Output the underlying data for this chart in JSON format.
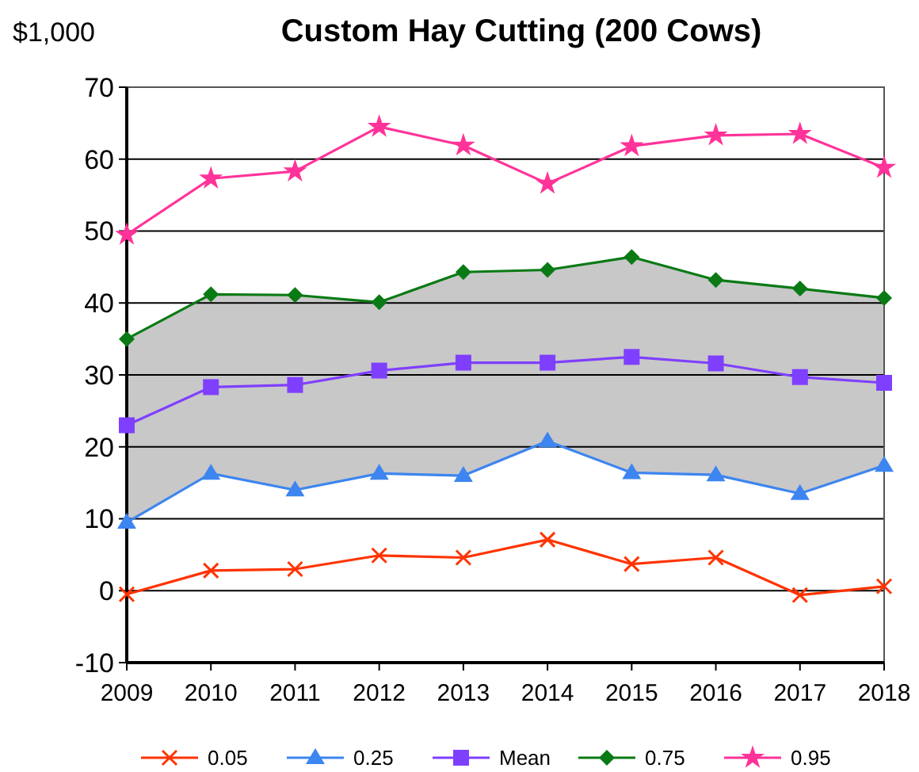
{
  "chart_data": {
    "type": "line",
    "title": "Custom Hay Cutting (200 Cows)",
    "ylabel": "$1,000",
    "x": [
      2009,
      2010,
      2011,
      2012,
      2013,
      2014,
      2015,
      2016,
      2017,
      2018
    ],
    "xlim": [
      2009,
      2018
    ],
    "xticks": [
      2009,
      2010,
      2011,
      2012,
      2013,
      2014,
      2015,
      2016,
      2017,
      2018
    ],
    "ylim": [
      -10,
      70
    ],
    "yticks": [
      -10,
      0,
      10,
      20,
      30,
      40,
      50,
      60,
      70
    ],
    "grid": "y",
    "legend": "bottom",
    "series": [
      {
        "name": "0.05",
        "color": "#ff3300",
        "marker": "cross",
        "values": [
          -0.5,
          2.8,
          3.0,
          4.9,
          4.6,
          7.1,
          3.7,
          4.6,
          -0.6,
          0.6
        ]
      },
      {
        "name": "0.25",
        "color": "#3d85f0",
        "marker": "triangle",
        "values": [
          9.5,
          16.3,
          14.0,
          16.3,
          16.0,
          20.8,
          16.4,
          16.1,
          13.5,
          17.4
        ]
      },
      {
        "name": "Mean",
        "color": "#7f3fff",
        "marker": "square",
        "values": [
          23,
          28.3,
          28.6,
          30.6,
          31.7,
          31.7,
          32.5,
          31.6,
          29.7,
          28.9
        ],
        "lower": [
          9.5,
          16.3,
          14.0,
          16.3,
          16.0,
          20.8,
          16.4,
          16.1,
          13.5,
          17.4
        ],
        "upper": [
          35,
          41.2,
          41.1,
          40.1,
          44.3,
          44.6,
          46.4,
          43.2,
          42.0,
          40.7
        ]
      },
      {
        "name": "0.75",
        "color": "#0a7a14",
        "marker": "diamond",
        "values": [
          35,
          41.2,
          41.1,
          40.1,
          44.3,
          44.6,
          46.4,
          43.2,
          42.0,
          40.7
        ]
      },
      {
        "name": "0.95",
        "color": "#ff3399",
        "marker": "star",
        "values": [
          49.5,
          57.3,
          58.3,
          64.5,
          61.9,
          56.6,
          61.8,
          63.3,
          63.5,
          58.8
        ]
      }
    ]
  }
}
